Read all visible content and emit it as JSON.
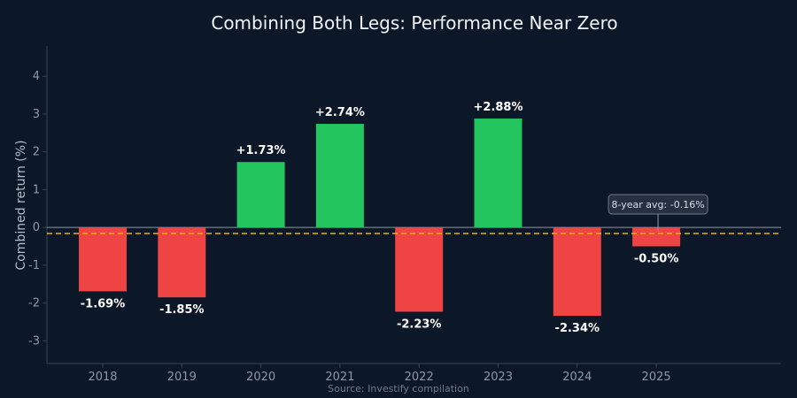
{
  "chart_data": {
    "type": "bar",
    "title": "Combining Both Legs: Performance Near Zero",
    "ylabel": "Combined return (%)",
    "xlabel": "",
    "source": "Source: Investify compilation",
    "categories": [
      "2018",
      "2019",
      "2020",
      "2021",
      "2022",
      "2023",
      "2024",
      "2025"
    ],
    "values": [
      -1.69,
      -1.85,
      1.73,
      2.74,
      -2.23,
      2.88,
      -2.34,
      -0.5
    ],
    "data_labels": [
      "-1.69%",
      "-1.85%",
      "+1.73%",
      "+2.74%",
      "-2.23%",
      "+2.88%",
      "-2.34%",
      "-0.50%"
    ],
    "ylim": [
      -3.6,
      4.8
    ],
    "yticks": [
      -3,
      -2,
      -1,
      0,
      1,
      2,
      3,
      4
    ],
    "average": {
      "value": -0.16,
      "label": "8-year avg: -0.16%",
      "anchor_category": "2025"
    },
    "colors": {
      "positive": "#22c55e",
      "negative": "#ef4444",
      "average_line": "#eab308",
      "zero_line": "#8d97a7",
      "background": "#0c1728"
    },
    "grid": false,
    "legend": "none"
  }
}
